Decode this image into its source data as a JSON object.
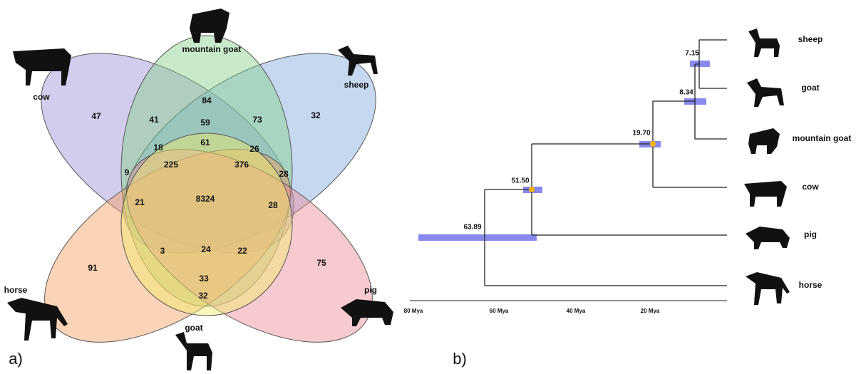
{
  "panel_a": {
    "label": "a)",
    "species": [
      "cow",
      "mountain goat",
      "sheep",
      "horse",
      "pig",
      "goat"
    ],
    "counts": [
      47,
      84,
      32,
      91,
      75,
      32,
      41,
      59,
      73,
      61,
      18,
      26,
      9,
      225,
      376,
      28,
      21,
      8324,
      28,
      3,
      24,
      22,
      33
    ]
  },
  "panel_b": {
    "label": "b)",
    "tips": [
      "sheep",
      "goat",
      "mountain goat",
      "cow",
      "pig",
      "horse"
    ],
    "node_ages": [
      "7.15",
      "8.34",
      "19.70",
      "51.50",
      "63.89"
    ],
    "axis_labels": [
      "80 Mya",
      "60 Mya",
      "40 Mya",
      "20 Mya"
    ]
  }
}
